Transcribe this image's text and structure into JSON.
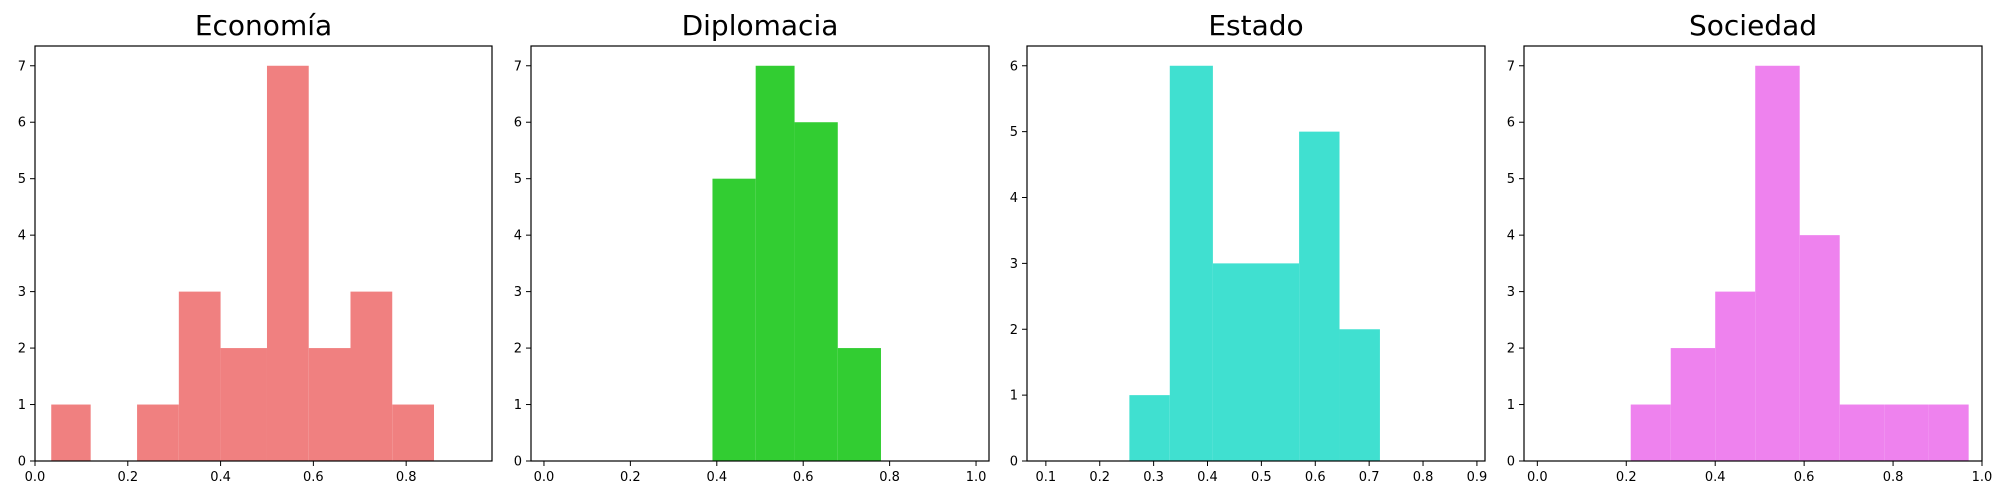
{
  "chart_data": [
    {
      "type": "bar",
      "subtype": "histogram",
      "title": "Economía",
      "color": "#f08080",
      "xlim": [
        0.0,
        0.985
      ],
      "ylim": [
        0,
        7.35
      ],
      "xticks": [
        "0.0",
        "0.2",
        "0.4",
        "0.6",
        "0.8"
      ],
      "yticks": [
        "0",
        "1",
        "2",
        "3",
        "4",
        "5",
        "6",
        "7"
      ],
      "bins": [
        {
          "x0": 0.035,
          "x1": 0.12,
          "count": 1
        },
        {
          "x0": 0.12,
          "x1": 0.22,
          "count": 0
        },
        {
          "x0": 0.22,
          "x1": 0.31,
          "count": 1
        },
        {
          "x0": 0.31,
          "x1": 0.4,
          "count": 3
        },
        {
          "x0": 0.4,
          "x1": 0.5,
          "count": 2
        },
        {
          "x0": 0.5,
          "x1": 0.59,
          "count": 7
        },
        {
          "x0": 0.59,
          "x1": 0.68,
          "count": 2
        },
        {
          "x0": 0.68,
          "x1": 0.77,
          "count": 3
        },
        {
          "x0": 0.77,
          "x1": 0.86,
          "count": 1
        }
      ]
    },
    {
      "type": "bar",
      "subtype": "histogram",
      "title": "Diplomacia",
      "color": "#32cd32",
      "xlim": [
        -0.03,
        1.03
      ],
      "ylim": [
        0,
        7.35
      ],
      "xticks": [
        "0.0",
        "0.2",
        "0.4",
        "0.6",
        "0.8",
        "1.0"
      ],
      "yticks": [
        "0",
        "1",
        "2",
        "3",
        "4",
        "5",
        "6",
        "7"
      ],
      "bins": [
        {
          "x0": 0.39,
          "x1": 0.49,
          "count": 5
        },
        {
          "x0": 0.49,
          "x1": 0.58,
          "count": 7
        },
        {
          "x0": 0.58,
          "x1": 0.68,
          "count": 6
        },
        {
          "x0": 0.68,
          "x1": 0.78,
          "count": 2
        }
      ]
    },
    {
      "type": "bar",
      "subtype": "histogram",
      "title": "Estado",
      "color": "#40e0d0",
      "xlim": [
        0.065,
        0.915
      ],
      "ylim": [
        0,
        6.3
      ],
      "xticks": [
        "0.1",
        "0.2",
        "0.3",
        "0.4",
        "0.5",
        "0.6",
        "0.7",
        "0.8",
        "0.9"
      ],
      "yticks": [
        "0",
        "1",
        "2",
        "3",
        "4",
        "5",
        "6"
      ],
      "bins": [
        {
          "x0": 0.255,
          "x1": 0.33,
          "count": 1
        },
        {
          "x0": 0.33,
          "x1": 0.41,
          "count": 6
        },
        {
          "x0": 0.41,
          "x1": 0.49,
          "count": 3
        },
        {
          "x0": 0.49,
          "x1": 0.57,
          "count": 3
        },
        {
          "x0": 0.57,
          "x1": 0.645,
          "count": 5
        },
        {
          "x0": 0.645,
          "x1": 0.72,
          "count": 2
        }
      ]
    },
    {
      "type": "bar",
      "subtype": "histogram",
      "title": "Sociedad",
      "color": "#ee82ee",
      "xlim": [
        -0.03,
        1.0
      ],
      "ylim": [
        0,
        7.35
      ],
      "xticks": [
        "0.0",
        "0.2",
        "0.4",
        "0.6",
        "0.8",
        "1.0"
      ],
      "yticks": [
        "0",
        "1",
        "2",
        "3",
        "4",
        "5",
        "6",
        "7"
      ],
      "bins": [
        {
          "x0": 0.21,
          "x1": 0.3,
          "count": 1
        },
        {
          "x0": 0.3,
          "x1": 0.4,
          "count": 2
        },
        {
          "x0": 0.4,
          "x1": 0.49,
          "count": 3
        },
        {
          "x0": 0.49,
          "x1": 0.59,
          "count": 7
        },
        {
          "x0": 0.59,
          "x1": 0.68,
          "count": 4
        },
        {
          "x0": 0.68,
          "x1": 0.78,
          "count": 1
        },
        {
          "x0": 0.78,
          "x1": 0.88,
          "count": 1
        },
        {
          "x0": 0.88,
          "x1": 0.97,
          "count": 1
        }
      ]
    }
  ]
}
